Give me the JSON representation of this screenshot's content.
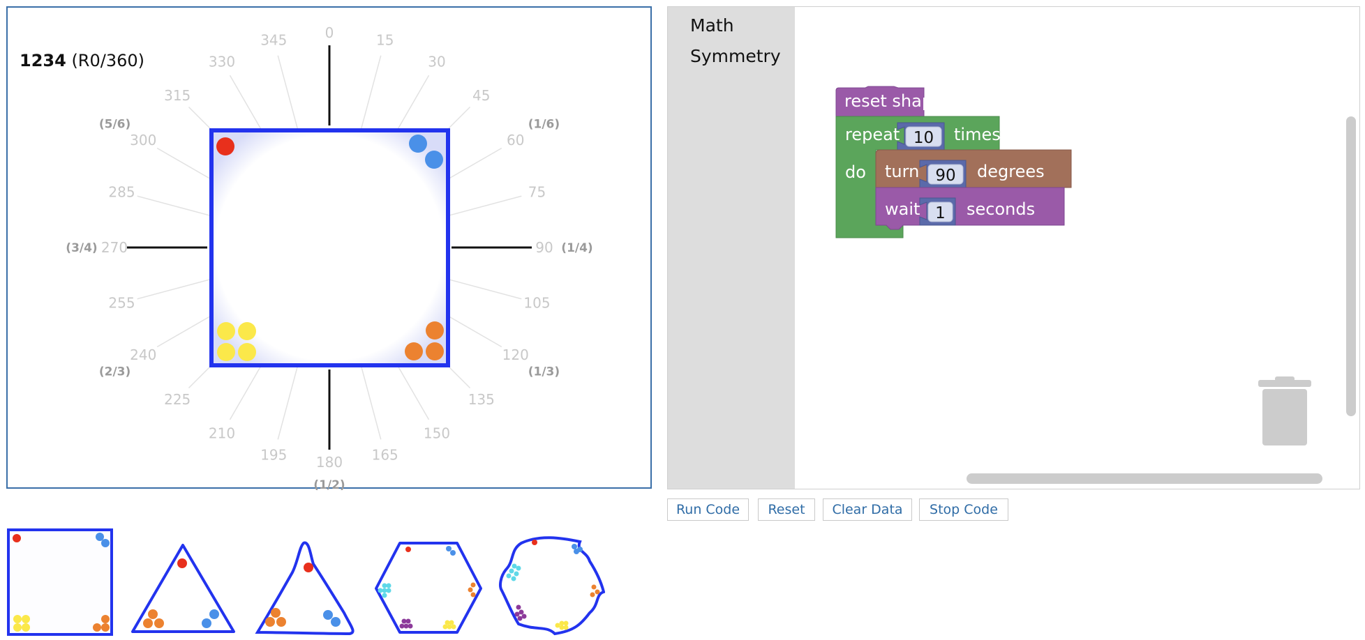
{
  "stage": {
    "shape_number": "1234",
    "rotation": "(R0/360)",
    "degree_labels": [
      "0",
      "15",
      "30",
      "45",
      "60",
      "75",
      "90",
      "105",
      "120",
      "135",
      "150",
      "165",
      "180",
      "195",
      "210",
      "225",
      "240",
      "255",
      "270",
      "285",
      "300",
      "315",
      "330",
      "345"
    ],
    "fraction_labels": {
      "60": "(1/6)",
      "90": "(1/4)",
      "120": "(1/3)",
      "180": "(1/2)",
      "240": "(2/3)",
      "270": "(3/4)",
      "300": "(5/6)"
    },
    "colors": {
      "frame": "#2233ee",
      "red": "#e8301c",
      "blue": "#4a90e8",
      "yellow": "#fbe84a",
      "orange": "#ec8230",
      "cyan": "#5fd8e8",
      "purple": "#8c3a9a"
    }
  },
  "workspace": {
    "categories": [
      "Math",
      "Symmetry"
    ],
    "blocks": {
      "reset": "reset shape",
      "repeat": "repeat",
      "repeat_count": "10",
      "times": "times",
      "do": "do",
      "turn": "turn",
      "turn_value": "90",
      "degrees": "degrees",
      "wait": "wait",
      "wait_value": "1",
      "seconds": "seconds"
    }
  },
  "buttons": {
    "run": "Run Code",
    "reset": "Reset",
    "clear": "Clear Data",
    "stop": "Stop Code"
  },
  "thumbnails": [
    "square",
    "triangle",
    "skewed-triangle",
    "hexagon",
    "wavy-hexagon"
  ]
}
